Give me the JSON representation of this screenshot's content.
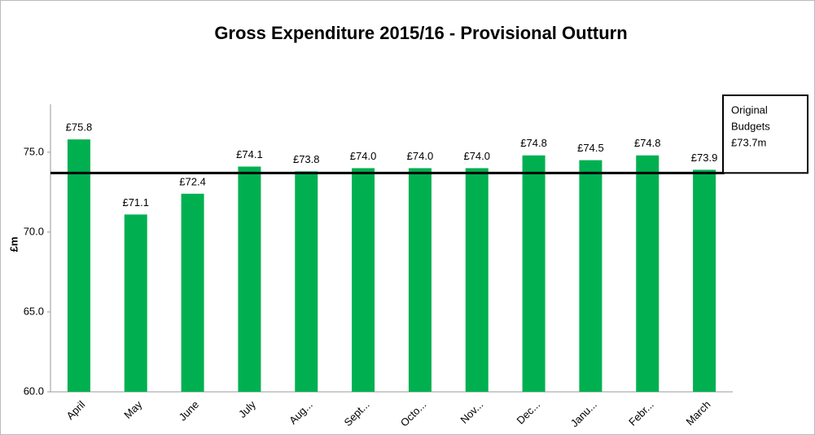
{
  "chart_data": {
    "type": "bar",
    "title": "Gross Expenditure 2015/16 - Provisional Outturn",
    "y_label": "£m",
    "categories": [
      "April",
      "May",
      "June",
      "July",
      "Aug...",
      "Sept...",
      "Octo...",
      "Nov...",
      "Dec...",
      "Janu...",
      "Febr...",
      "March"
    ],
    "values": [
      75.8,
      71.1,
      72.4,
      74.1,
      73.8,
      74.0,
      74.0,
      74.0,
      74.8,
      74.5,
      74.8,
      73.9
    ],
    "value_labels": [
      "£75.8",
      "£71.1",
      "£72.4",
      "£74.1",
      "£73.8",
      "£74.0",
      "£74.0",
      "£74.0",
      "£74.8",
      "£74.5",
      "£74.8",
      "£73.9"
    ],
    "color": "#00b050",
    "ylim": [
      60,
      78
    ],
    "yticks": [
      {
        "value": 60,
        "label": "60.0"
      },
      {
        "value": 65,
        "label": "65.0"
      },
      {
        "value": 70,
        "label": "70.0"
      },
      {
        "value": 75,
        "label": "75.0"
      }
    ],
    "reference_line": {
      "value": 73.7,
      "color": "#000000",
      "annotation_lines": [
        "Original",
        "Budgets",
        "£73.7m"
      ]
    }
  }
}
